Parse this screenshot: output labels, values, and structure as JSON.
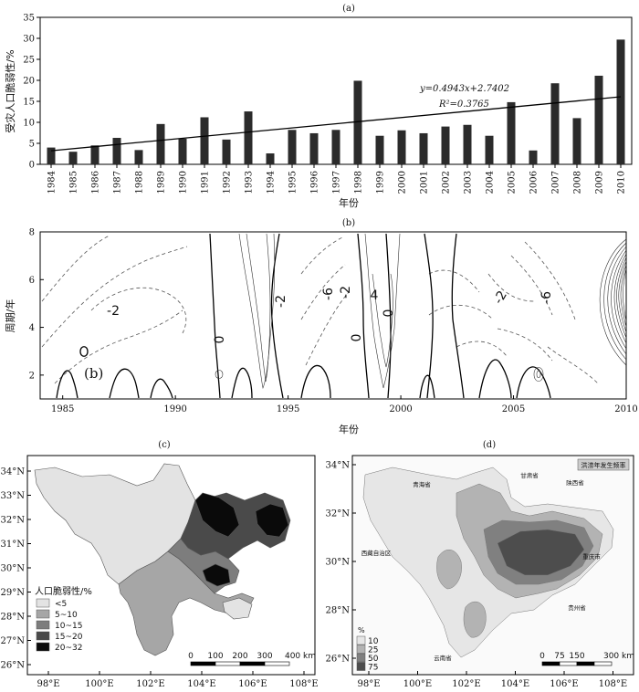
{
  "panel_a": {
    "label": "(a)",
    "ylabel": "受灾人口脆弱性/%",
    "xlabel": "年份",
    "equation": "y=0.4943x+2.7402",
    "r2": "R²=0.3765",
    "ylim": [
      0,
      35
    ],
    "yticks": [
      "0",
      "5",
      "10",
      "15",
      "20",
      "25",
      "30",
      "35"
    ]
  },
  "panel_b": {
    "label": "(b)",
    "inner_label": "(b)",
    "ylabel": "周期/年",
    "xlabel": "年份",
    "xticks": [
      "1985",
      "1990",
      "1995",
      "2000",
      "2005",
      "2010"
    ],
    "yticks": [
      "2",
      "4",
      "6",
      "8"
    ],
    "contour_labels": [
      "-2",
      "0",
      "-2",
      "-6",
      "-2",
      "4",
      "0",
      "0",
      "-2",
      "-6"
    ]
  },
  "panel_c": {
    "label": "(c)",
    "lat_ticks": [
      "34°N",
      "33°N",
      "32°N",
      "31°N",
      "30°N",
      "29°N",
      "28°N",
      "27°N",
      "26°N"
    ],
    "lon_ticks": [
      "98°E",
      "100°E",
      "102°E",
      "104°E",
      "106°E",
      "108°E"
    ],
    "legend_title": "人口脆弱性/%",
    "legend_items": [
      {
        "label": "<5",
        "color": "#e3e3e3"
      },
      {
        "label": "5~10",
        "color": "#a6a6a6"
      },
      {
        "label": "10~15",
        "color": "#7d7d7d"
      },
      {
        "label": "15~20",
        "color": "#4a4a4a"
      },
      {
        "label": "20~32",
        "color": "#0a0a0a"
      }
    ],
    "scale_labels": [
      "0",
      "100",
      "200",
      "300",
      "400 km"
    ]
  },
  "panel_d": {
    "label": "(d)",
    "title_box": "洪涝年发生频率",
    "lat_ticks": [
      "34°N",
      "32°N",
      "30°N",
      "28°N",
      "26°N"
    ],
    "lon_ticks": [
      "98°E",
      "100°E",
      "102°E",
      "104°E",
      "106°E",
      "108°E"
    ],
    "legend_title": "%",
    "legend_items": [
      {
        "label": "10",
        "color": "#e6e6e6"
      },
      {
        "label": "25",
        "color": "#b3b3b3"
      },
      {
        "label": "50",
        "color": "#808080"
      },
      {
        "label": "75",
        "color": "#4d4d4d"
      }
    ],
    "scale_labels": [
      "0",
      "75",
      "150",
      "300 km"
    ],
    "places": [
      "青海省",
      "甘肃省",
      "陕西省",
      "西藏自治区",
      "重庆市",
      "贵州省",
      "云南省"
    ]
  },
  "chart_data": [
    {
      "type": "bar",
      "title": "(a)",
      "xlabel": "年份",
      "ylabel": "受灾人口脆弱性/%",
      "ylim": [
        0,
        35
      ],
      "categories": [
        "1984",
        "1985",
        "1986",
        "1987",
        "1988",
        "1989",
        "1990",
        "1991",
        "1992",
        "1993",
        "1994",
        "1995",
        "1996",
        "1997",
        "1998",
        "1999",
        "2000",
        "2001",
        "2002",
        "2003",
        "2004",
        "2005",
        "2006",
        "2007",
        "2008",
        "2009",
        "2010"
      ],
      "values": [
        4.0,
        3.0,
        4.5,
        6.3,
        3.4,
        9.6,
        6.1,
        11.2,
        5.9,
        12.6,
        2.6,
        8.2,
        7.4,
        8.2,
        19.9,
        6.8,
        8.1,
        7.4,
        9.0,
        9.4,
        6.8,
        14.8,
        3.3,
        19.3,
        11.0,
        21.1,
        29.7
      ],
      "trend": {
        "slope": 0.4943,
        "intercept": 2.7402,
        "r2": 0.3765
      },
      "grid": false
    },
    {
      "type": "line",
      "title": "(b)",
      "xlabel": "年份",
      "ylabel": "周期/年",
      "xlim": [
        1984,
        2010
      ],
      "ylim": [
        1,
        8
      ]
    }
  ]
}
